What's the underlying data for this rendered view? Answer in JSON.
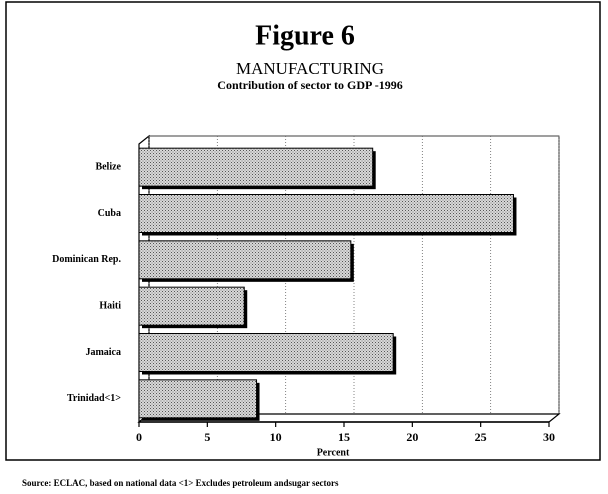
{
  "chart_data": {
    "type": "bar",
    "orientation": "horizontal",
    "title": "Figure 6",
    "subtitle": "MANUFACTURING",
    "subtitle2": "Contribution of sector to GDP -1996",
    "categories": [
      "Belize",
      "Cuba",
      "Dominican Rep.",
      "Haiti",
      "Jamaica",
      "Trinidad<1>"
    ],
    "values": [
      17.1,
      27.4,
      15.5,
      7.7,
      18.6,
      8.6
    ],
    "color": "#b8b8b8",
    "xlim": [
      0,
      30
    ],
    "xticks": [
      0,
      5,
      10,
      15,
      20,
      25,
      30
    ],
    "grid": true,
    "xlabel": "Percent",
    "source": "Source: ECLAC, based on national data <1> Excludes petroleum andsugar sectors"
  }
}
